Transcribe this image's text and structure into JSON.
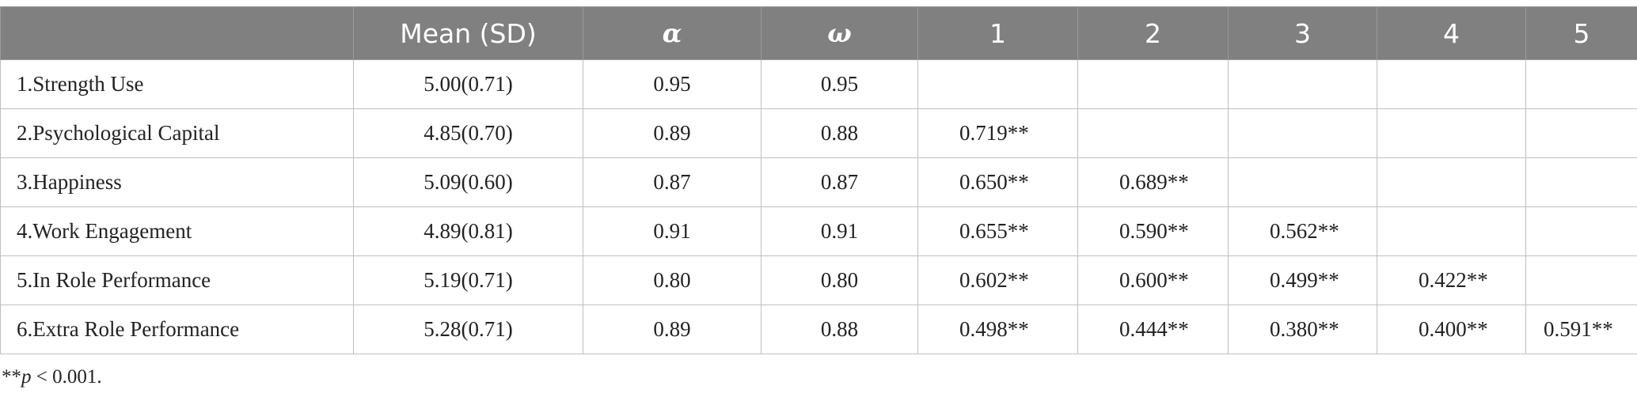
{
  "table": {
    "headers": [
      "",
      "Mean (SD)",
      "α",
      "ω",
      "1",
      "2",
      "3",
      "4",
      "5"
    ],
    "rows": [
      {
        "label": "1.Strength Use",
        "mean_sd": "5.00(0.71)",
        "alpha": "0.95",
        "omega": "0.95",
        "c1": "",
        "c2": "",
        "c3": "",
        "c4": "",
        "c5": ""
      },
      {
        "label": "2.Psychological Capital",
        "mean_sd": "4.85(0.70)",
        "alpha": "0.89",
        "omega": "0.88",
        "c1": "0.719**",
        "c2": "",
        "c3": "",
        "c4": "",
        "c5": ""
      },
      {
        "label": "3.Happiness",
        "mean_sd": "5.09(0.60)",
        "alpha": "0.87",
        "omega": "0.87",
        "c1": "0.650**",
        "c2": "0.689**",
        "c3": "",
        "c4": "",
        "c5": ""
      },
      {
        "label": "4.Work Engagement",
        "mean_sd": "4.89(0.81)",
        "alpha": "0.91",
        "omega": "0.91",
        "c1": "0.655**",
        "c2": "0.590**",
        "c3": "0.562**",
        "c4": "",
        "c5": ""
      },
      {
        "label": "5.In Role Performance",
        "mean_sd": "5.19(0.71)",
        "alpha": "0.80",
        "omega": "0.80",
        "c1": "0.602**",
        "c2": "0.600**",
        "c3": "0.499**",
        "c4": "0.422**",
        "c5": ""
      },
      {
        "label": "6.Extra Role Performance",
        "mean_sd": "5.28(0.71)",
        "alpha": "0.89",
        "omega": "0.88",
        "c1": "0.498**",
        "c2": "0.444**",
        "c3": "0.380**",
        "c4": "0.400**",
        "c5": "0.591**"
      }
    ]
  },
  "footnote": {
    "stars": "**",
    "p": "p",
    "rest": " < 0.001."
  },
  "colors": {
    "header_bg": "#808080",
    "header_text": "#ffffff",
    "grid": "#bfbfbf"
  }
}
